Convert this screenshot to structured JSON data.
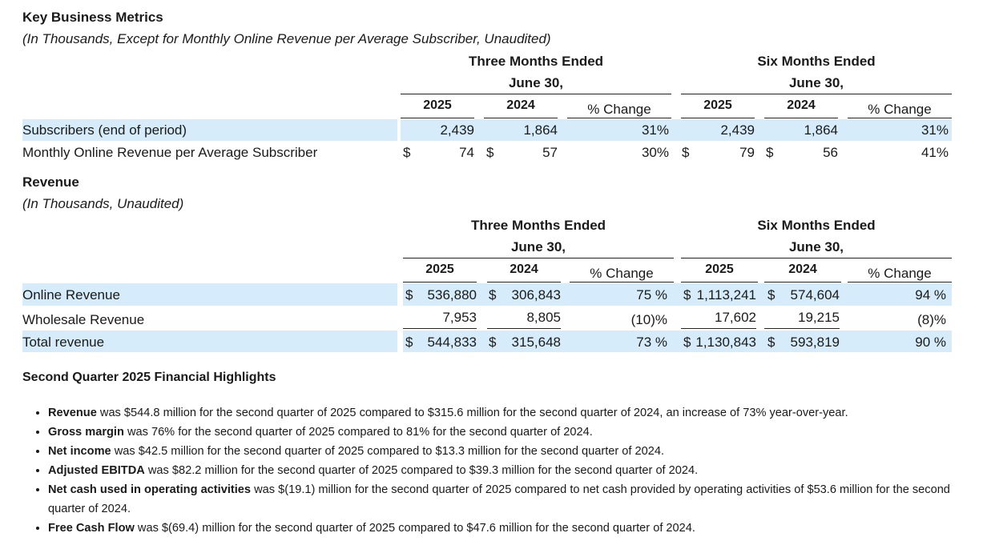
{
  "metrics": {
    "title": "Key Business Metrics",
    "subtitle": "(In Thousands, Except for Monthly Online Revenue per Average Subscriber, Unaudited)",
    "three_months_line1": "Three Months Ended",
    "three_months_line2": "June 30,",
    "six_months_line1": "Six Months Ended",
    "six_months_line2": "June 30,",
    "year_a": "2025",
    "year_b": "2024",
    "change_label": "% Change",
    "rows": [
      {
        "label": "Subscribers (end of period)",
        "cur1": "",
        "q25": "2,439",
        "cur2": "",
        "q24": "1,864",
        "qchg": "31%",
        "cur3": "",
        "s25": "2,439",
        "cur4": "",
        "s24": "1,864",
        "schg": "31%"
      },
      {
        "label": "Monthly Online Revenue per Average Subscriber",
        "cur1": "$",
        "q25": "74",
        "cur2": "$",
        "q24": "57",
        "qchg": "30%",
        "cur3": "$",
        "s25": "79",
        "cur4": "$",
        "s24": "56",
        "schg": "41%"
      }
    ]
  },
  "revenue": {
    "title": "Revenue",
    "subtitle": "(In Thousands, Unaudited)",
    "three_months_line1": "Three Months Ended",
    "three_months_line2": "June 30,",
    "six_months_line1": "Six Months Ended",
    "six_months_line2": "June 30,",
    "year_a": "2025",
    "year_b": "2024",
    "change_label": "% Change",
    "rows": [
      {
        "label": "Online Revenue",
        "cur1": "$",
        "q25": "536,880",
        "cur2": "$",
        "q24": "306,843",
        "qchg": "75 %",
        "cur3": "$",
        "s25": "1,113,241",
        "cur4": "$",
        "s24": "574,604",
        "schg": "94 %"
      },
      {
        "label": "Wholesale Revenue",
        "cur1": "",
        "q25": "7,953",
        "cur2": "",
        "q24": "8,805",
        "qchg": "(10)%",
        "cur3": "",
        "s25": "17,602",
        "cur4": "",
        "s24": "19,215",
        "schg": "(8)%"
      },
      {
        "label": "Total revenue",
        "cur1": "$",
        "q25": "544,833",
        "cur2": "$",
        "q24": "315,648",
        "qchg": "73 %",
        "cur3": "$",
        "s25": "1,130,843",
        "cur4": "$",
        "s24": "593,819",
        "schg": "90 %"
      }
    ]
  },
  "highlights": {
    "title": "Second Quarter 2025 Financial Highlights",
    "items": [
      {
        "bold": "Revenue",
        "text": " was $544.8 million for the second quarter of 2025 compared to $315.6 million for the second quarter of 2024, an increase of 73% year-over-year."
      },
      {
        "bold": "Gross margin",
        "text": " was 76% for the second quarter of 2025 compared to 81% for the second quarter of 2024."
      },
      {
        "bold": "Net income",
        "text": " was $42.5 million for the second quarter of 2025 compared to $13.3 million for the second quarter of 2024."
      },
      {
        "bold": "Adjusted EBITDA",
        "text": " was $82.2 million for the second quarter of 2025 compared to $39.3 million for the second quarter of 2024."
      },
      {
        "bold": "Net cash used in operating activities",
        "text": " was $(19.1) million for the second quarter of 2025 compared to net cash provided by operating activities of $53.6 million for the second quarter of 2024."
      },
      {
        "bold": "Free Cash Flow",
        "text": " was $(69.4) million for the second quarter of 2025 compared to $47.6 million for the second quarter of 2024."
      }
    ]
  }
}
